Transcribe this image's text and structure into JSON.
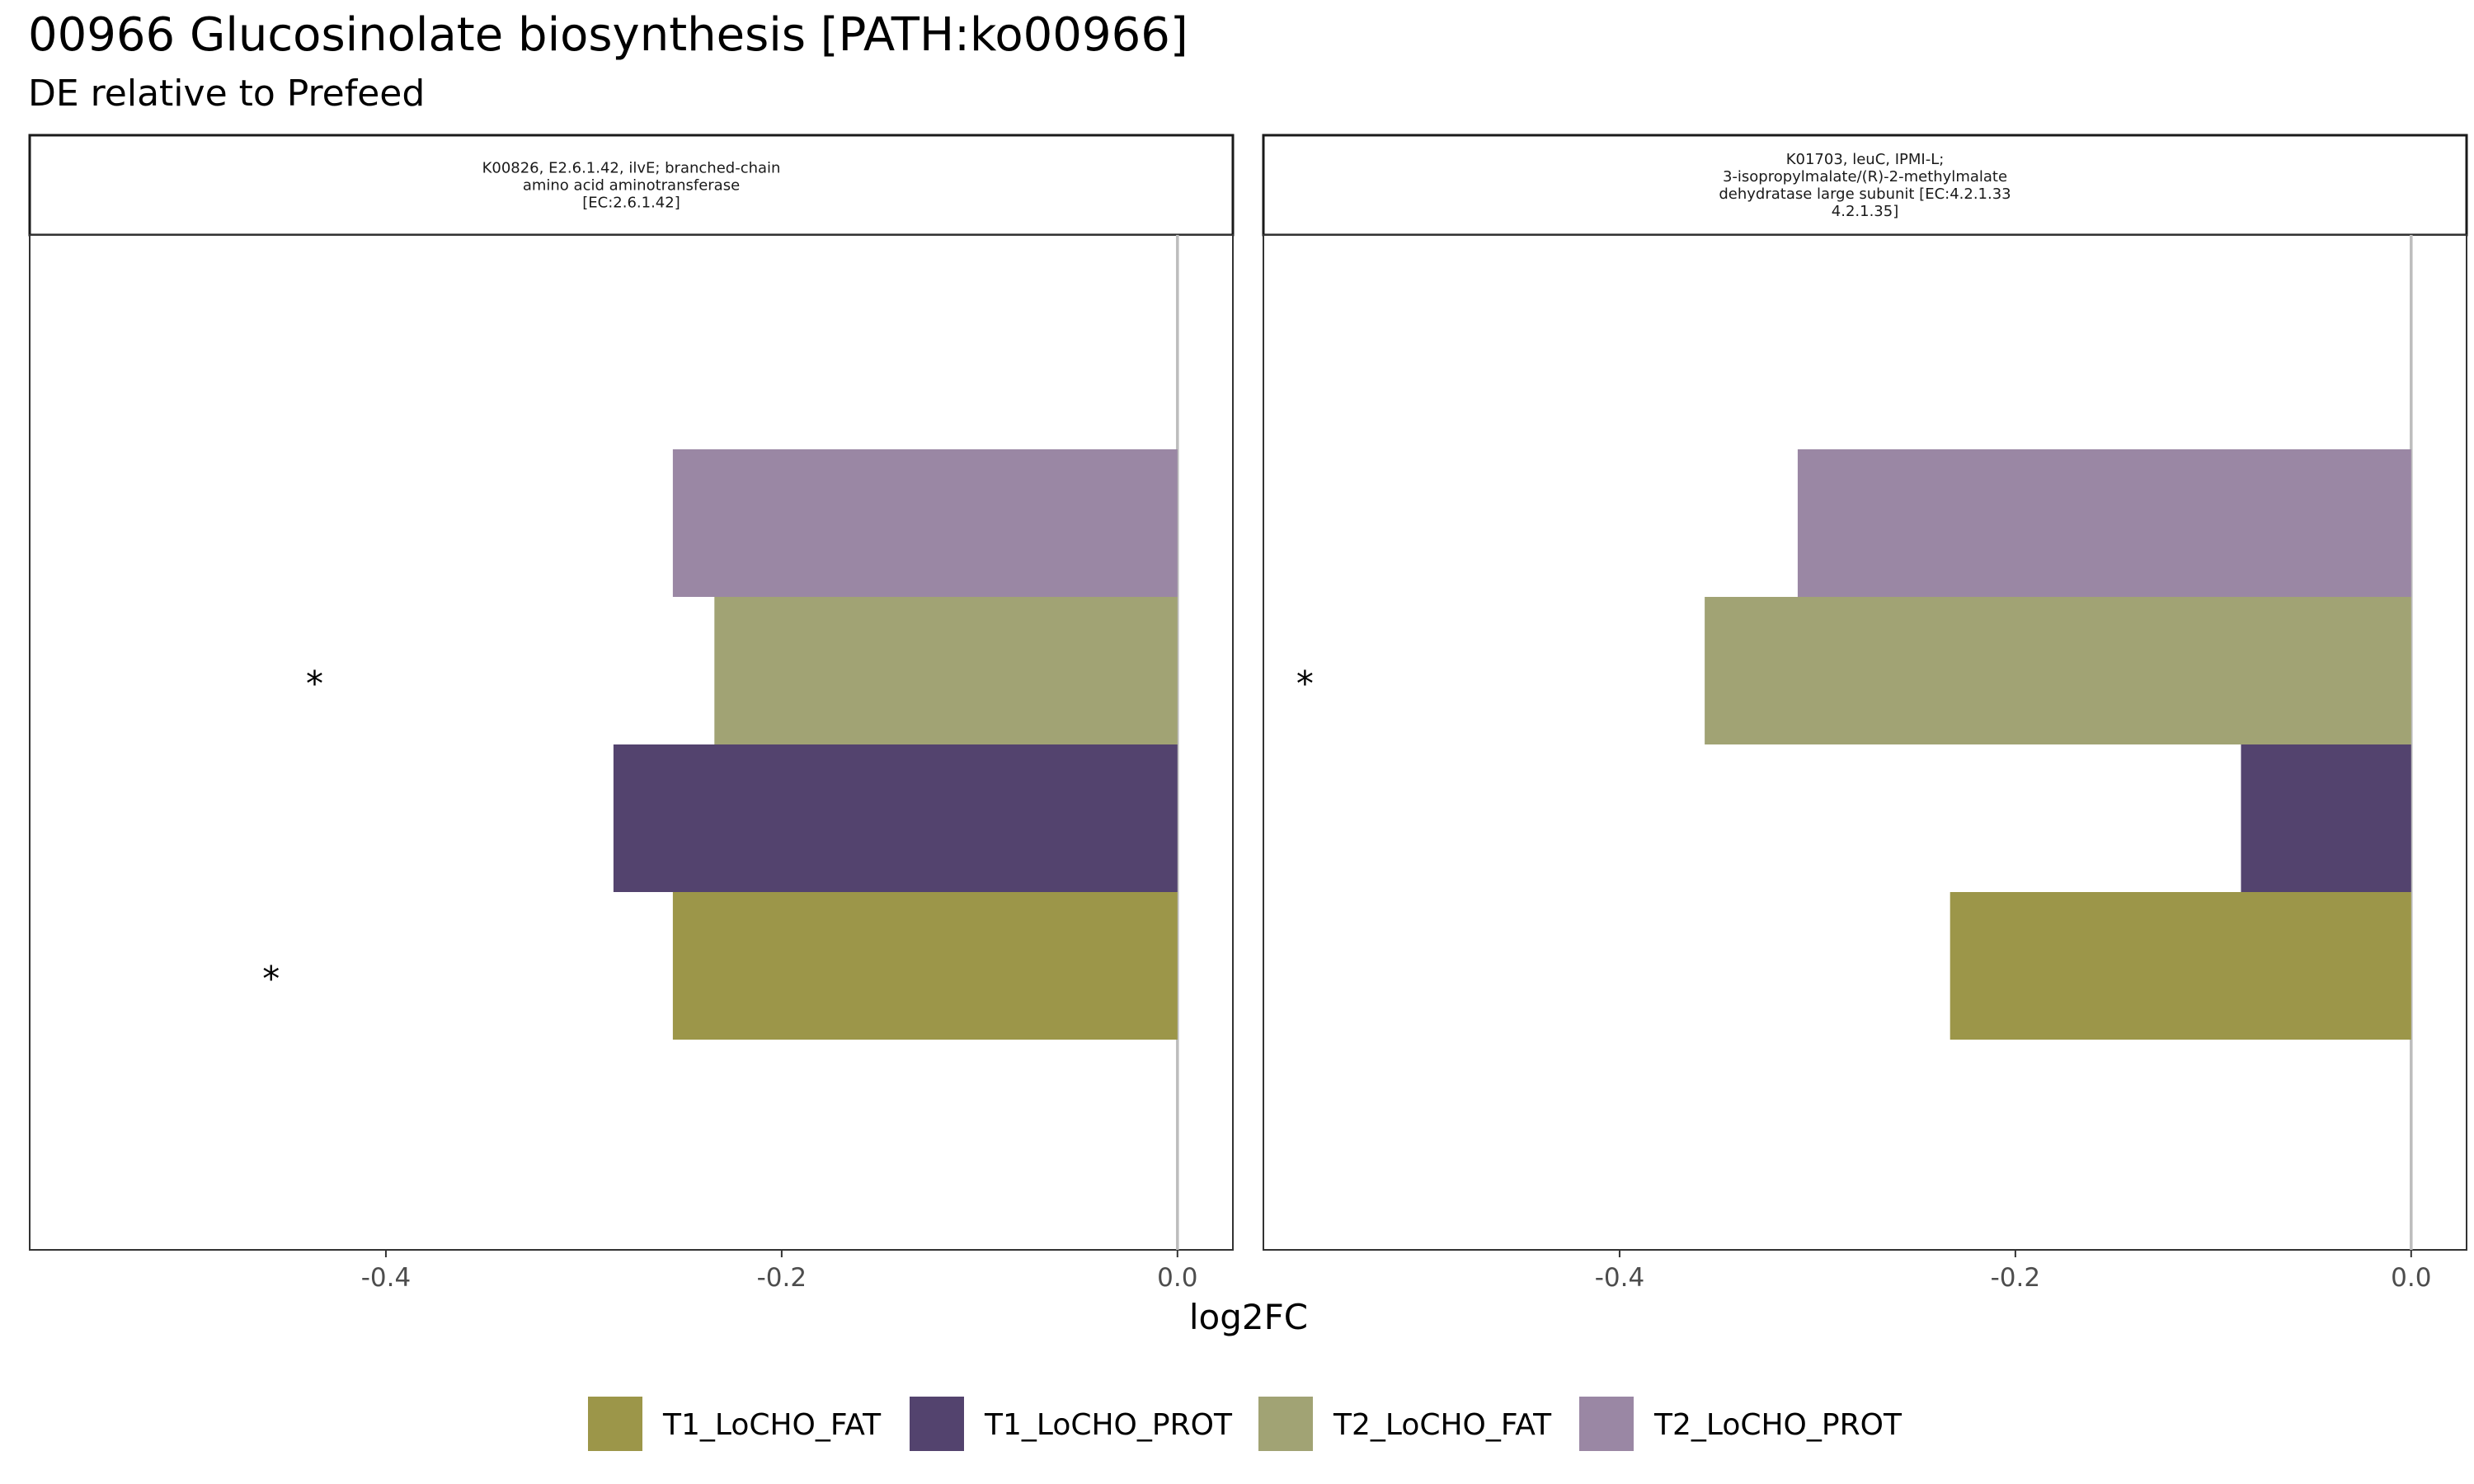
{
  "title": "00966 Glucosinolate biosynthesis [PATH:ko00966]",
  "subtitle": "DE relative to Prefeed",
  "chart_data": {
    "type": "bar",
    "orientation": "horizontal",
    "xlabel": "log2FC",
    "ylabel": "",
    "x_ticks": [
      -0.4,
      -0.2,
      0.0
    ],
    "x_tick_labels": [
      "-0.4",
      "-0.2",
      "0.0"
    ],
    "grid": false,
    "legend_position": "bottom",
    "groups": [
      "T1_LoCHO_FAT",
      "T1_LoCHO_PROT",
      "T2_LoCHO_FAT",
      "T2_LoCHO_PROT"
    ],
    "colors": {
      "T1_LoCHO_FAT": "#9C9649",
      "T1_LoCHO_PROT": "#53436E",
      "T2_LoCHO_FAT": "#A1A374",
      "T2_LoCHO_PROT": "#9A87A4"
    },
    "panels": [
      {
        "strip_lines": [
          "K00826, E2.6.1.42, ilvE; branched-chain",
          "amino acid aminotransferase",
          "[EC:2.6.1.42]"
        ],
        "xlim": [
          -0.58,
          0.028
        ],
        "series": [
          {
            "name": "T1_LoCHO_FAT",
            "value": -0.255,
            "significant": true
          },
          {
            "name": "T1_LoCHO_PROT",
            "value": -0.285,
            "significant": false
          },
          {
            "name": "T2_LoCHO_FAT",
            "value": -0.234,
            "significant": true
          },
          {
            "name": "T2_LoCHO_PROT",
            "value": -0.255,
            "significant": false
          }
        ],
        "star_positions": {
          "T1_LoCHO_FAT": -0.458,
          "T2_LoCHO_FAT": -0.436
        }
      },
      {
        "strip_lines": [
          "K01703, leuC, IPMI-L;",
          "3-isopropylmalate/(R)-2-methylmalate",
          "dehydratase large subunit [EC:4.2.1.33",
          "4.2.1.35]"
        ],
        "xlim": [
          -0.58,
          0.028
        ],
        "series": [
          {
            "name": "T1_LoCHO_FAT",
            "value": -0.233,
            "significant": false
          },
          {
            "name": "T1_LoCHO_PROT",
            "value": -0.086,
            "significant": false
          },
          {
            "name": "T2_LoCHO_FAT",
            "value": -0.357,
            "significant": true
          },
          {
            "name": "T2_LoCHO_PROT",
            "value": -0.31,
            "significant": false
          }
        ],
        "star_positions": {
          "T2_LoCHO_FAT": -0.559
        }
      }
    ]
  }
}
